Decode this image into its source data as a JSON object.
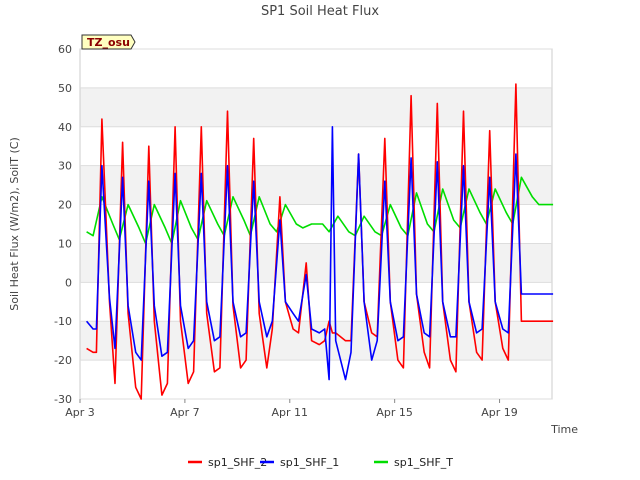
{
  "chart_data": {
    "type": "line",
    "title": "SP1 Soil Heat Flux",
    "xlabel": "Time",
    "ylabel": "Soil Heat Flux (W/m2), SoilT (C)",
    "ylim": [
      -30,
      60
    ],
    "xlim": [
      "Apr 3",
      "Apr 21"
    ],
    "x_ticks": [
      "Apr 3",
      "Apr 7",
      "Apr 11",
      "Apr 15",
      "Apr 19"
    ],
    "y_ticks": [
      -30,
      -20,
      -10,
      0,
      10,
      20,
      30,
      40,
      50,
      60
    ],
    "grid": "horizontal bands",
    "legend_position": "bottom",
    "badge": "TZ_osu",
    "series": [
      {
        "name": "sp1_SHF_2",
        "color": "#ff0000",
        "x": [
          "Apr 3 06:00",
          "Apr 3 12:00",
          "Apr 3 15:00",
          "Apr 3 20:00",
          "Apr 4 03:00",
          "Apr 4 08:00",
          "Apr 4 15:00",
          "Apr 4 20:00",
          "Apr 5 03:00",
          "Apr 5 08:00",
          "Apr 5 15:00",
          "Apr 5 20:00",
          "Apr 6 03:00",
          "Apr 6 08:00",
          "Apr 6 15:00",
          "Apr 6 20:00",
          "Apr 7 03:00",
          "Apr 7 08:00",
          "Apr 7 15:00",
          "Apr 7 20:00",
          "Apr 8 03:00",
          "Apr 8 08:00",
          "Apr 8 15:00",
          "Apr 8 20:00",
          "Apr 9 03:00",
          "Apr 9 08:00",
          "Apr 9 15:00",
          "Apr 9 20:00",
          "Apr 10 03:00",
          "Apr 10 08:00",
          "Apr 10 15:00",
          "Apr 10 20:00",
          "Apr 11 03:00",
          "Apr 11 08:00",
          "Apr 11 15:00",
          "Apr 11 20:00",
          "Apr 12 03:00",
          "Apr 12 08:00",
          "Apr 12 12:00",
          "Apr 12 15:00",
          "Apr 12 18:00",
          "Apr 13 03:00",
          "Apr 13 08:00",
          "Apr 13 15:00",
          "Apr 13 20:00",
          "Apr 14 03:00",
          "Apr 14 08:00",
          "Apr 14 15:00",
          "Apr 14 20:00",
          "Apr 15 03:00",
          "Apr 15 08:00",
          "Apr 15 15:00",
          "Apr 15 20:00",
          "Apr 16 03:00",
          "Apr 16 08:00",
          "Apr 16 15:00",
          "Apr 16 20:00",
          "Apr 17 03:00",
          "Apr 17 08:00",
          "Apr 17 15:00",
          "Apr 17 20:00",
          "Apr 18 03:00",
          "Apr 18 08:00",
          "Apr 18 15:00",
          "Apr 18 20:00",
          "Apr 19 03:00",
          "Apr 19 08:00",
          "Apr 19 15:00",
          "Apr 19 20:00",
          "Apr 20 03:00",
          "Apr 20 08:00",
          "Apr 20 15:00",
          "Apr 20 20:00",
          "Apr 21 01:00"
        ],
        "values": [
          -17,
          -18,
          -18,
          42,
          -5,
          -26,
          36,
          -8,
          -27,
          -30,
          35,
          -10,
          -29,
          -26,
          40,
          -10,
          -26,
          -23,
          40,
          -8,
          -23,
          -22,
          44,
          -6,
          -22,
          -20,
          37,
          -8,
          -22,
          -12,
          22,
          -5,
          -12,
          -13,
          5,
          -15,
          -16,
          -15,
          -10,
          -13,
          -13,
          -15,
          -15,
          33,
          -5,
          -13,
          -14,
          37,
          -5,
          -20,
          -22,
          48,
          -3,
          -18,
          -22,
          46,
          -5,
          -20,
          -23,
          44,
          -5,
          -18,
          -20,
          39,
          -5,
          -17,
          -20,
          51,
          -10,
          -10,
          -10,
          -10,
          -10,
          -10
        ]
      },
      {
        "name": "sp1_SHF_1",
        "color": "#0000ff",
        "x": [
          "Apr 3 06:00",
          "Apr 3 12:00",
          "Apr 3 15:00",
          "Apr 3 20:00",
          "Apr 4 03:00",
          "Apr 4 08:00",
          "Apr 4 15:00",
          "Apr 4 20:00",
          "Apr 5 03:00",
          "Apr 5 08:00",
          "Apr 5 15:00",
          "Apr 5 20:00",
          "Apr 6 03:00",
          "Apr 6 08:00",
          "Apr 6 15:00",
          "Apr 6 20:00",
          "Apr 7 03:00",
          "Apr 7 08:00",
          "Apr 7 15:00",
          "Apr 7 20:00",
          "Apr 8 03:00",
          "Apr 8 08:00",
          "Apr 8 15:00",
          "Apr 8 20:00",
          "Apr 9 03:00",
          "Apr 9 08:00",
          "Apr 9 15:00",
          "Apr 9 20:00",
          "Apr 10 03:00",
          "Apr 10 08:00",
          "Apr 10 15:00",
          "Apr 10 20:00",
          "Apr 11 03:00",
          "Apr 11 08:00",
          "Apr 11 15:00",
          "Apr 11 20:00",
          "Apr 12 03:00",
          "Apr 12 08:00",
          "Apr 12 12:00",
          "Apr 12 15:00",
          "Apr 12 18:00",
          "Apr 13 03:00",
          "Apr 13 08:00",
          "Apr 13 15:00",
          "Apr 13 20:00",
          "Apr 14 03:00",
          "Apr 14 08:00",
          "Apr 14 15:00",
          "Apr 14 20:00",
          "Apr 15 03:00",
          "Apr 15 08:00",
          "Apr 15 15:00",
          "Apr 15 20:00",
          "Apr 16 03:00",
          "Apr 16 08:00",
          "Apr 16 15:00",
          "Apr 16 20:00",
          "Apr 17 03:00",
          "Apr 17 08:00",
          "Apr 17 15:00",
          "Apr 17 20:00",
          "Apr 18 03:00",
          "Apr 18 08:00",
          "Apr 18 15:00",
          "Apr 18 20:00",
          "Apr 19 03:00",
          "Apr 19 08:00",
          "Apr 19 15:00",
          "Apr 19 20:00",
          "Apr 20 03:00",
          "Apr 20 08:00",
          "Apr 20 15:00",
          "Apr 20 20:00",
          "Apr 21 01:00"
        ],
        "values": [
          -10,
          -12,
          -12,
          30,
          -4,
          -17,
          27,
          -6,
          -18,
          -20,
          26,
          -6,
          -19,
          -18,
          28,
          -6,
          -17,
          -15,
          28,
          -5,
          -15,
          -14,
          30,
          -5,
          -14,
          -13,
          26,
          -5,
          -14,
          -10,
          16,
          -5,
          -8,
          -10,
          2,
          -12,
          -13,
          -12,
          -25,
          40,
          -15,
          -25,
          -18,
          33,
          -5,
          -20,
          -15,
          26,
          -5,
          -15,
          -14,
          32,
          -3,
          -13,
          -14,
          31,
          -5,
          -14,
          -14,
          30,
          -5,
          -13,
          -12,
          27,
          -5,
          -12,
          -13,
          33,
          -3,
          -3,
          -3,
          -3,
          -3,
          -3
        ]
      },
      {
        "name": "sp1_SHF_T",
        "color": "#00dd00",
        "x": [
          "Apr 3 06:00",
          "Apr 3 12:00",
          "Apr 3 20:00",
          "Apr 4 06:00",
          "Apr 4 12:00",
          "Apr 4 20:00",
          "Apr 5 06:00",
          "Apr 5 12:00",
          "Apr 5 20:00",
          "Apr 6 06:00",
          "Apr 6 12:00",
          "Apr 6 20:00",
          "Apr 7 06:00",
          "Apr 7 12:00",
          "Apr 7 20:00",
          "Apr 8 06:00",
          "Apr 8 12:00",
          "Apr 8 20:00",
          "Apr 9 06:00",
          "Apr 9 12:00",
          "Apr 9 20:00",
          "Apr 10 06:00",
          "Apr 10 12:00",
          "Apr 10 20:00",
          "Apr 11 06:00",
          "Apr 11 12:00",
          "Apr 11 20:00",
          "Apr 12 06:00",
          "Apr 12 12:00",
          "Apr 12 20:00",
          "Apr 13 06:00",
          "Apr 13 12:00",
          "Apr 13 20:00",
          "Apr 14 06:00",
          "Apr 14 12:00",
          "Apr 14 20:00",
          "Apr 15 06:00",
          "Apr 15 12:00",
          "Apr 15 20:00",
          "Apr 16 06:00",
          "Apr 16 12:00",
          "Apr 16 20:00",
          "Apr 17 06:00",
          "Apr 17 12:00",
          "Apr 17 20:00",
          "Apr 18 06:00",
          "Apr 18 12:00",
          "Apr 18 20:00",
          "Apr 19 06:00",
          "Apr 19 12:00",
          "Apr 19 20:00",
          "Apr 20 06:00",
          "Apr 20 12:00",
          "Apr 20 20:00",
          "Apr 21 01:00"
        ],
        "values": [
          13,
          12,
          22,
          15,
          11,
          20,
          14,
          10,
          20,
          14,
          10,
          21,
          14,
          11,
          21,
          15,
          12,
          22,
          16,
          12,
          22,
          15,
          13,
          20,
          15,
          14,
          15,
          15,
          13,
          17,
          13,
          12,
          17,
          13,
          12,
          20,
          14,
          12,
          23,
          15,
          13,
          24,
          16,
          14,
          24,
          18,
          15,
          24,
          18,
          15,
          27,
          22,
          20,
          20,
          20
        ]
      }
    ]
  }
}
